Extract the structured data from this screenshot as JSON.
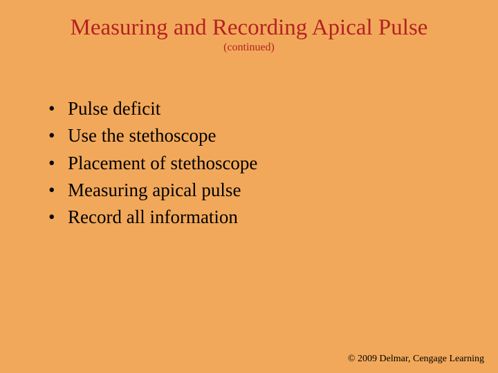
{
  "slide": {
    "title": "Measuring and Recording Apical Pulse",
    "subtitle": "(continued)",
    "title_color": "#b22222",
    "title_fontsize": 33,
    "subtitle_fontsize": 16,
    "bullets": [
      "Pulse deficit",
      "Use the stethoscope",
      "Placement of stethoscope",
      "Measuring apical pulse",
      "Record all information"
    ],
    "bullet_color": "#000000",
    "bullet_fontsize": 27,
    "bullet_marker": "•",
    "footer": "© 2009 Delmar, Cengage Learning",
    "footer_fontsize": 14,
    "background_color": "#f2a85a"
  }
}
